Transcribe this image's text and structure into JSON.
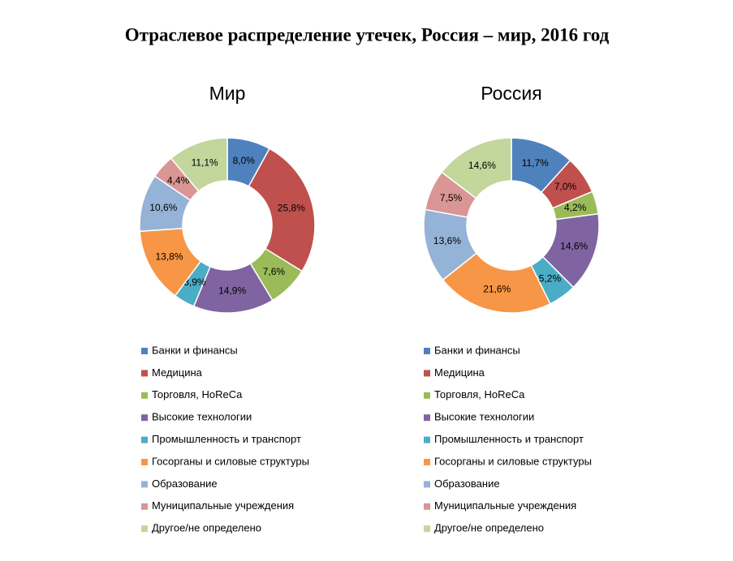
{
  "title": "Отраслевое распределение утечек, Россия – мир, 2016 год",
  "chart_data": [
    {
      "type": "donut",
      "title": "Мир",
      "categories": [
        "Банки и финансы",
        "Медицина",
        "Торговля, HoReCa",
        "Высокие технологии",
        "Промышленность и транспорт",
        "Госорганы и силовые структуры",
        "Образование",
        "Муниципальные учреждения",
        "Другое/не определено"
      ],
      "values": [
        8.0,
        25.8,
        7.6,
        14.9,
        3.9,
        13.8,
        10.6,
        4.4,
        11.1
      ],
      "value_labels": [
        "8,0%",
        "25,8%",
        "7,6%",
        "14,9%",
        "3,9%",
        "13,8%",
        "10,6%",
        "4,4%",
        "11,1%"
      ],
      "colors": [
        "#4f81bd",
        "#c0504d",
        "#9bbb59",
        "#8064a2",
        "#4bacc6",
        "#f79646",
        "#95b3d7",
        "#d99694",
        "#c3d69b"
      ]
    },
    {
      "type": "donut",
      "title": "Россия",
      "categories": [
        "Банки и финансы",
        "Медицина",
        "Торговля, HoReCa",
        "Высокие технологии",
        "Промышленность и транспорт",
        "Госорганы и силовые структуры",
        "Образование",
        "Муниципальные учреждения",
        "Другое/не определено"
      ],
      "values": [
        11.7,
        7.0,
        4.2,
        14.6,
        5.2,
        21.6,
        13.6,
        7.5,
        14.6
      ],
      "value_labels": [
        "11,7%",
        "7,0%",
        "4,2%",
        "14,6%",
        "5,2%",
        "21,6%",
        "13,6%",
        "7,5%",
        "14,6%"
      ],
      "colors": [
        "#4f81bd",
        "#c0504d",
        "#9bbb59",
        "#8064a2",
        "#4bacc6",
        "#f79646",
        "#95b3d7",
        "#d99694",
        "#c3d69b"
      ]
    }
  ]
}
